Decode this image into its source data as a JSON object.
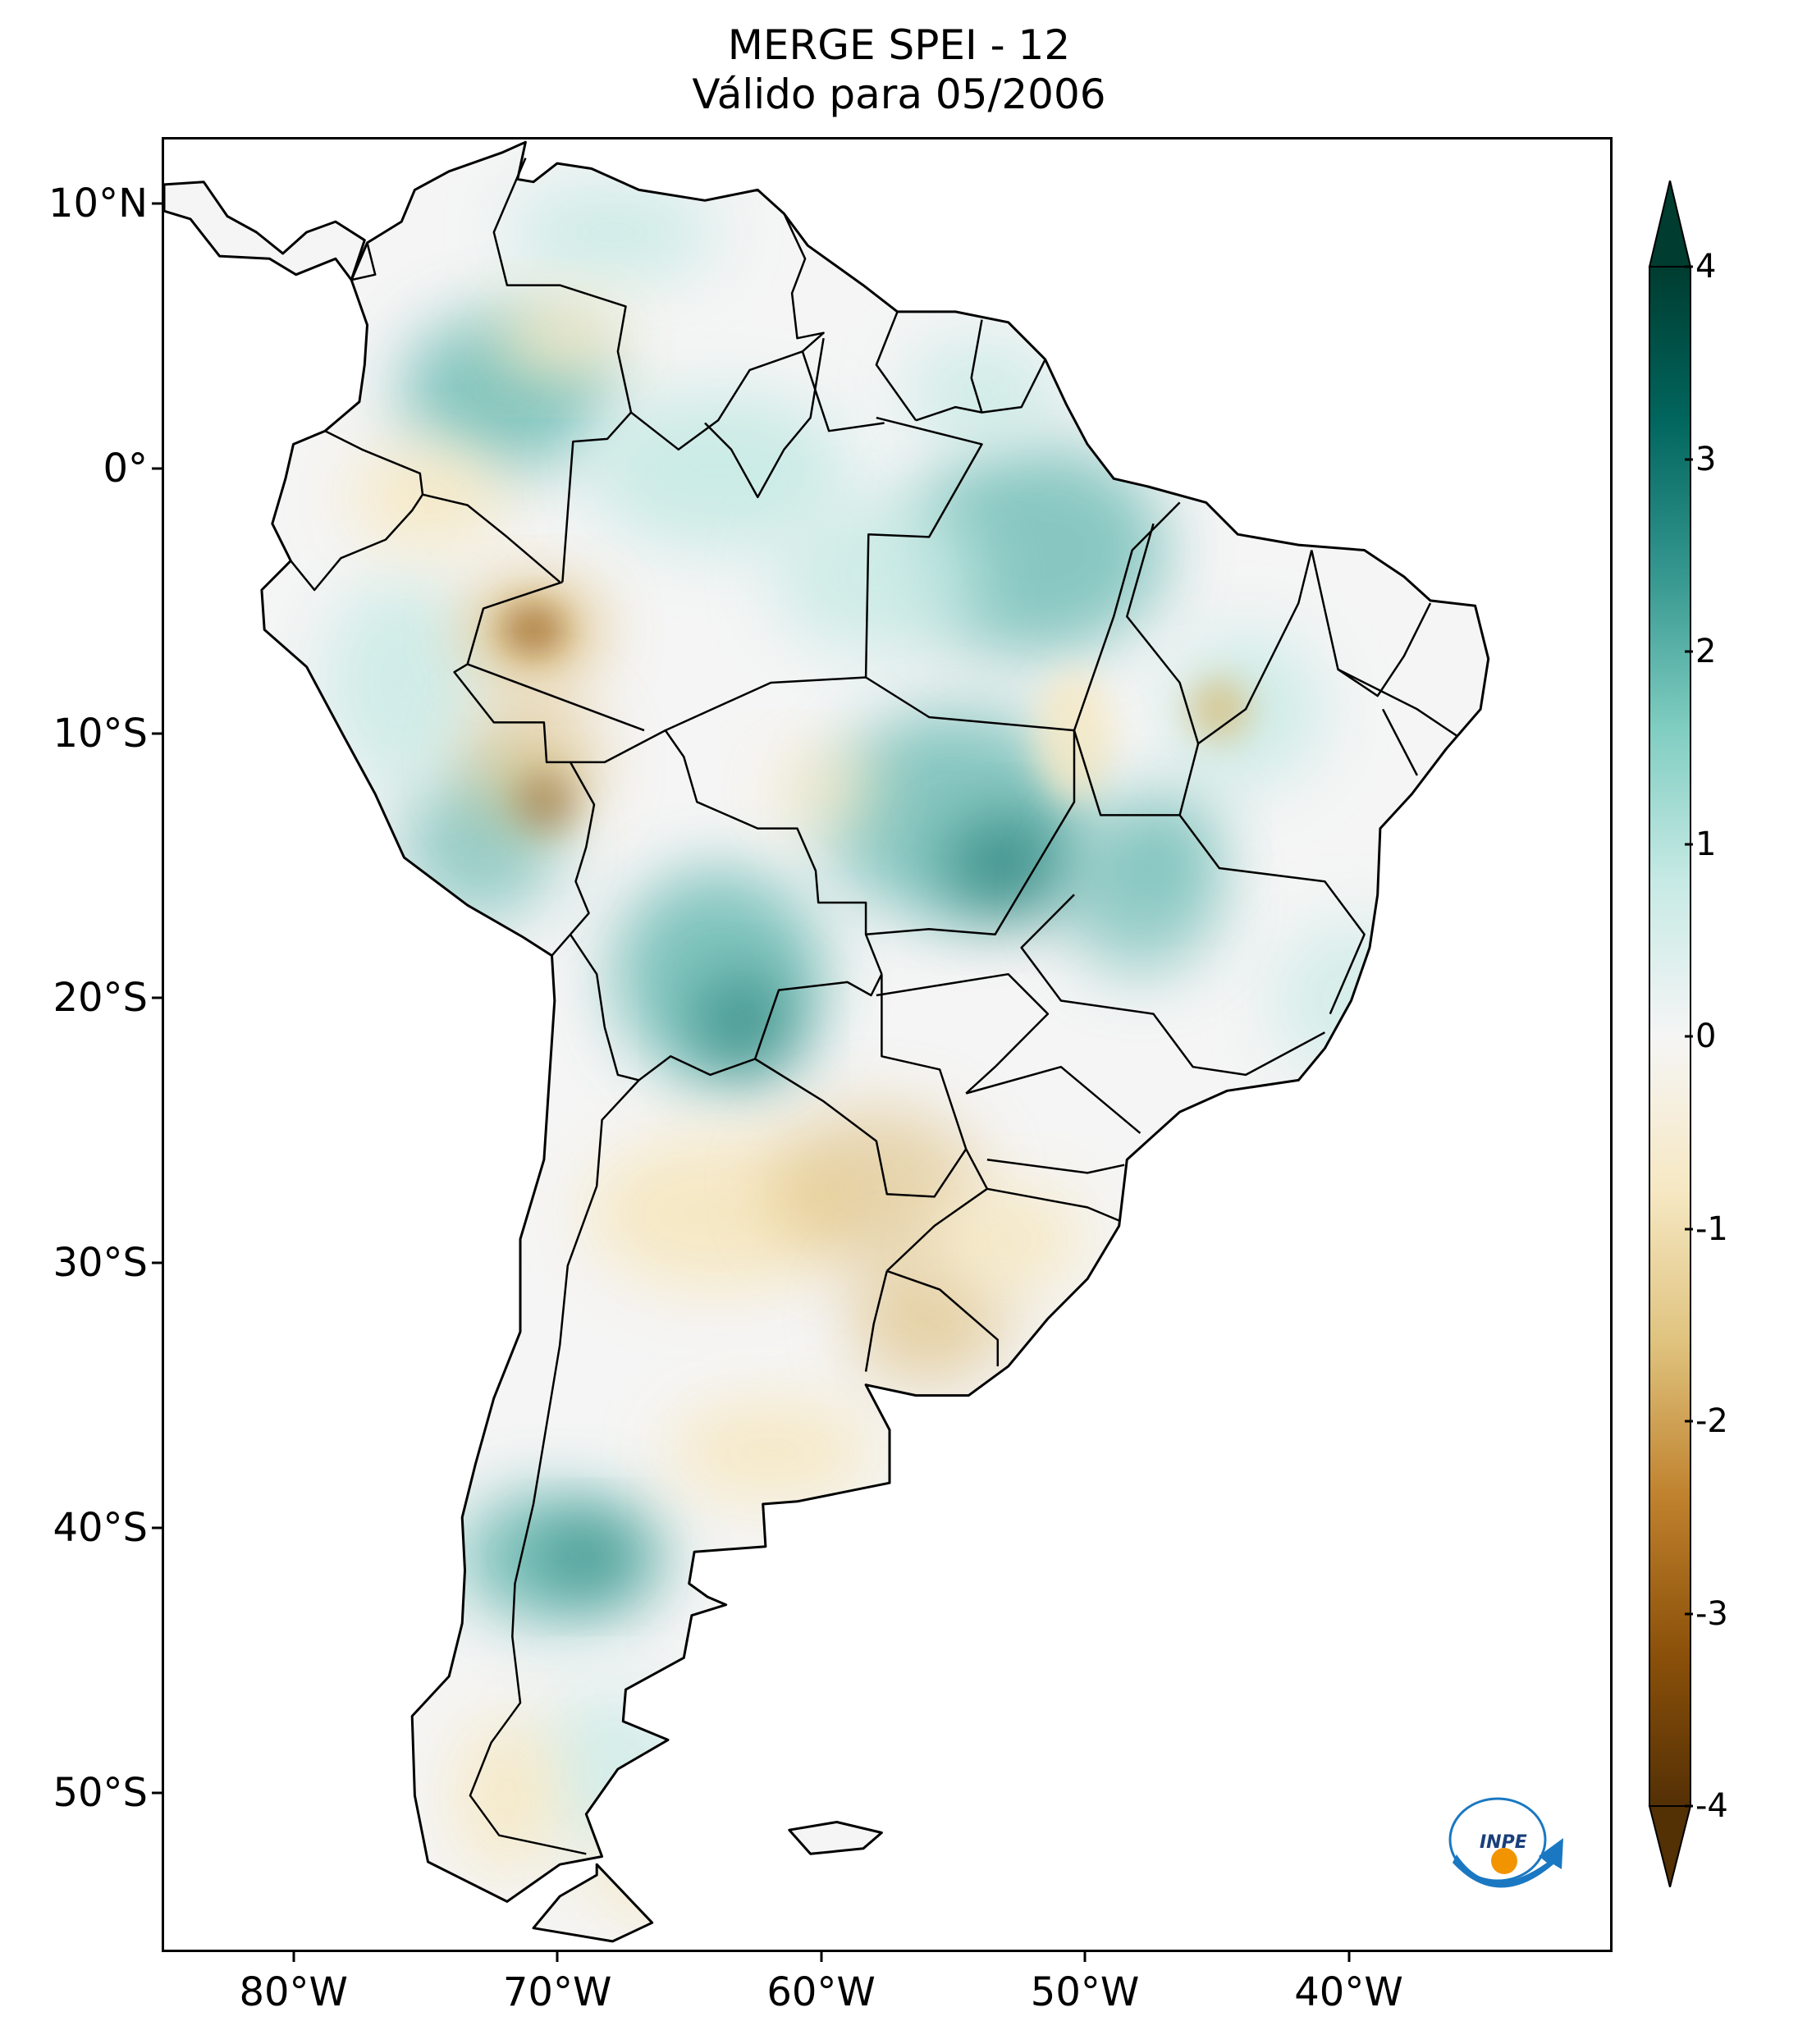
{
  "title": {
    "line1": "MERGE   SPEI - 12",
    "line2": "Válido para 05/2006"
  },
  "map": {
    "extent_lon": [
      -85,
      -30
    ],
    "extent_lat": [
      -56,
      12.5
    ],
    "lat_ticks": [
      {
        "value": 10,
        "label": "10°N"
      },
      {
        "value": 0,
        "label": "0°"
      },
      {
        "value": -10,
        "label": "10°S"
      },
      {
        "value": -20,
        "label": "20°S"
      },
      {
        "value": -30,
        "label": "30°S"
      },
      {
        "value": -40,
        "label": "40°S"
      },
      {
        "value": -50,
        "label": "50°S"
      }
    ],
    "lon_ticks": [
      {
        "value": -80,
        "label": "80°W"
      },
      {
        "value": -70,
        "label": "70°W"
      },
      {
        "value": -60,
        "label": "60°W"
      },
      {
        "value": -50,
        "label": "50°W"
      },
      {
        "value": -40,
        "label": "40°W"
      }
    ],
    "colors": {
      "wet_strong": "#01665e",
      "wet": "#5ab4ac",
      "wet_light": "#c7eae5",
      "neutral": "#f5f5f5",
      "dry_light": "#f6e8c3",
      "dry": "#d8b365",
      "dry_strong": "#8c510a",
      "border": "#000000"
    }
  },
  "colorbar": {
    "min": -4,
    "max": 4,
    "extend": "both",
    "colormap": "BrBG",
    "stops": [
      "#543005",
      "#8c510a",
      "#bf812d",
      "#dfc27d",
      "#f6e8c3",
      "#f5f5f5",
      "#c7eae5",
      "#80cdc1",
      "#35978f",
      "#01665e",
      "#003c30"
    ],
    "ticks": [
      {
        "value": 4,
        "label": "4"
      },
      {
        "value": 3,
        "label": "3"
      },
      {
        "value": 2,
        "label": "2"
      },
      {
        "value": 1,
        "label": "1"
      },
      {
        "value": 0,
        "label": "0"
      },
      {
        "value": -1,
        "label": "-1"
      },
      {
        "value": -2,
        "label": "-2"
      },
      {
        "value": -3,
        "label": "-3"
      },
      {
        "value": -4,
        "label": "-4"
      }
    ]
  },
  "logo": {
    "text": "INPE"
  }
}
